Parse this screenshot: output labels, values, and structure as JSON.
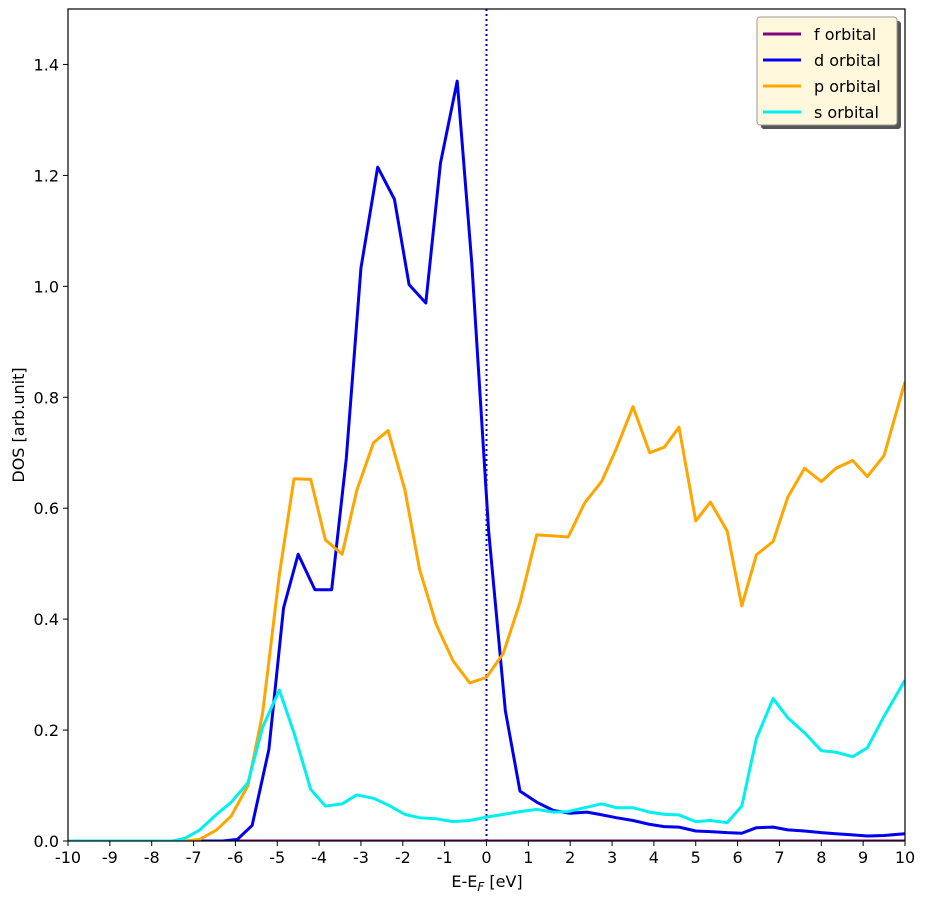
{
  "chart_data": {
    "type": "line",
    "xlabel_main": "E-E",
    "xlabel_sub": "F",
    "xlabel_tail": " [eV]",
    "ylabel": "DOS [arb.unit]",
    "xlim": [
      -10,
      10
    ],
    "ylim": [
      0,
      1.5
    ],
    "xticks": [
      -10,
      -9,
      -8,
      -7,
      -6,
      -5,
      -4,
      -3,
      -2,
      -1,
      0,
      1,
      2,
      3,
      4,
      5,
      6,
      7,
      8,
      9,
      10
    ],
    "yticks": [
      0.0,
      0.2,
      0.4,
      0.6,
      0.8,
      1.0,
      1.2,
      1.4
    ],
    "ytick_labels": [
      "0.0",
      "0.2",
      "0.4",
      "0.6",
      "0.8",
      "1.0",
      "1.2",
      "1.4"
    ],
    "grid": false,
    "legend_position": "top-right",
    "vline": {
      "x": 0,
      "color": "#0000cc",
      "style": "dotted"
    },
    "series": [
      {
        "name": "f orbital",
        "color": "#800080",
        "x": [
          -10,
          10
        ],
        "y": [
          0,
          0
        ]
      },
      {
        "name": "d orbital",
        "color": "#0000ee",
        "x": [
          -10,
          -9,
          -8,
          -7,
          -6.3,
          -5.95,
          -5.6,
          -5.2,
          -4.85,
          -4.5,
          -4.1,
          -3.7,
          -3.35,
          -3.0,
          -2.6,
          -2.2,
          -1.85,
          -1.45,
          -1.1,
          -0.7,
          -0.35,
          0.05,
          0.45,
          0.8,
          1.2,
          1.6,
          2.0,
          2.4,
          2.7,
          3.1,
          3.5,
          3.9,
          4.25,
          4.6,
          5.0,
          5.35,
          5.75,
          6.1,
          6.45,
          6.85,
          7.2,
          7.6,
          8.0,
          8.35,
          8.75,
          9.1,
          9.5,
          10.0
        ],
        "y": [
          0,
          0,
          0,
          0,
          0.0,
          0.003,
          0.028,
          0.165,
          0.42,
          0.517,
          0.453,
          0.453,
          0.69,
          1.033,
          1.215,
          1.157,
          1.003,
          0.97,
          1.222,
          1.37,
          1.04,
          0.56,
          0.235,
          0.09,
          0.07,
          0.055,
          0.05,
          0.052,
          0.048,
          0.042,
          0.037,
          0.03,
          0.026,
          0.025,
          0.018,
          0.017,
          0.015,
          0.014,
          0.024,
          0.025,
          0.02,
          0.018,
          0.015,
          0.013,
          0.011,
          0.009,
          0.01,
          0.013
        ]
      },
      {
        "name": "p orbital",
        "color": "#ffa500",
        "x": [
          -10,
          -9,
          -8,
          -7.2,
          -6.85,
          -6.45,
          -6.1,
          -5.7,
          -5.35,
          -4.95,
          -4.6,
          -4.2,
          -3.85,
          -3.45,
          -3.1,
          -2.7,
          -2.35,
          -1.95,
          -1.6,
          -1.2,
          -0.8,
          -0.4,
          0.0,
          0.4,
          0.8,
          1.2,
          1.6,
          1.95,
          2.35,
          2.75,
          3.1,
          3.5,
          3.9,
          4.25,
          4.6,
          5.0,
          5.35,
          5.75,
          6.1,
          6.45,
          6.85,
          7.2,
          7.6,
          8.0,
          8.35,
          8.75,
          9.1,
          9.5,
          10.0
        ],
        "y": [
          0,
          0,
          0,
          0,
          0.003,
          0.02,
          0.045,
          0.1,
          0.23,
          0.48,
          0.653,
          0.652,
          0.543,
          0.517,
          0.632,
          0.718,
          0.74,
          0.633,
          0.49,
          0.39,
          0.325,
          0.285,
          0.295,
          0.338,
          0.43,
          0.552,
          0.55,
          0.548,
          0.61,
          0.648,
          0.707,
          0.783,
          0.7,
          0.71,
          0.746,
          0.577,
          0.611,
          0.559,
          0.424,
          0.516,
          0.54,
          0.62,
          0.672,
          0.648,
          0.672,
          0.686,
          0.657,
          0.695,
          0.828
        ]
      },
      {
        "name": "s orbital",
        "color": "#00f0f0",
        "x": [
          -10,
          -9,
          -8,
          -7.5,
          -7.2,
          -6.85,
          -6.45,
          -6.1,
          -5.7,
          -5.35,
          -4.95,
          -4.6,
          -4.2,
          -3.85,
          -3.45,
          -3.1,
          -2.7,
          -2.35,
          -1.95,
          -1.6,
          -1.2,
          -0.8,
          -0.4,
          0.0,
          0.4,
          0.8,
          1.2,
          1.6,
          1.95,
          2.35,
          2.75,
          3.1,
          3.5,
          3.9,
          4.25,
          4.6,
          5.0,
          5.35,
          5.75,
          6.1,
          6.45,
          6.85,
          7.2,
          7.6,
          8.0,
          8.35,
          8.75,
          9.1,
          9.5,
          10.0
        ],
        "y": [
          0,
          0,
          0,
          0,
          0.005,
          0.02,
          0.048,
          0.07,
          0.105,
          0.205,
          0.272,
          0.195,
          0.093,
          0.063,
          0.067,
          0.083,
          0.077,
          0.065,
          0.048,
          0.042,
          0.04,
          0.035,
          0.037,
          0.043,
          0.048,
          0.053,
          0.057,
          0.052,
          0.053,
          0.06,
          0.067,
          0.06,
          0.06,
          0.052,
          0.048,
          0.047,
          0.035,
          0.037,
          0.033,
          0.063,
          0.185,
          0.257,
          0.222,
          0.195,
          0.163,
          0.16,
          0.152,
          0.168,
          0.225,
          0.29
        ]
      }
    ]
  }
}
